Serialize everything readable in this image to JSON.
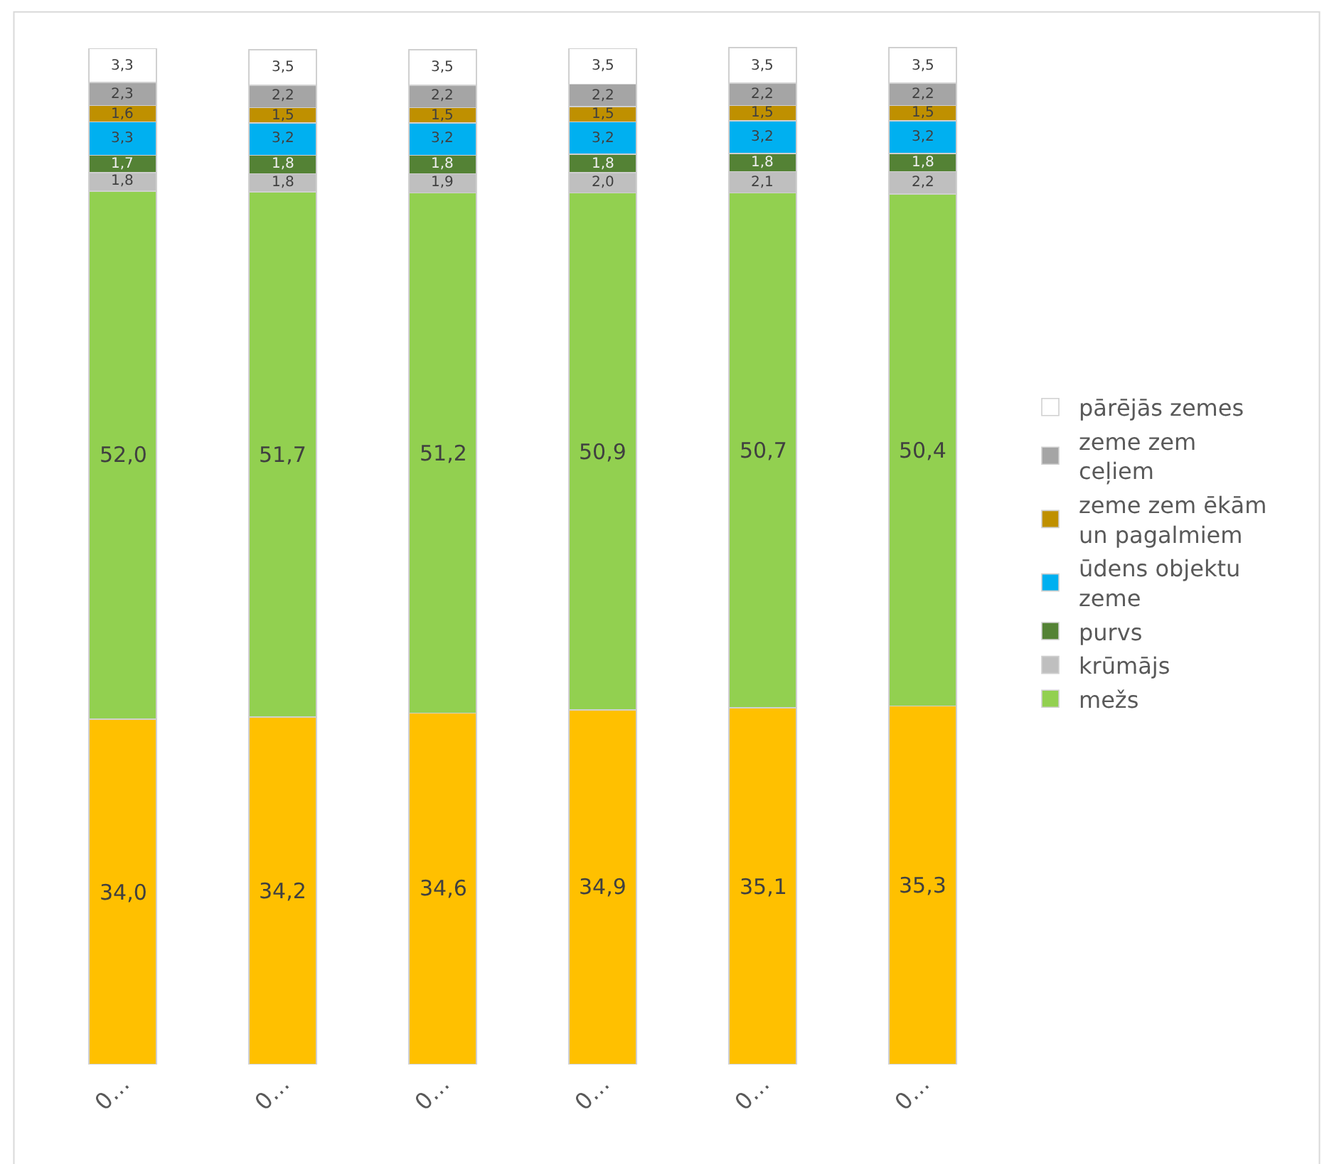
{
  "chart_data": {
    "type": "bar",
    "stacked": true,
    "tick_labels": "x",
    "categories": [
      "0…",
      "0…",
      "0…",
      "0…",
      "0…",
      "0…"
    ],
    "series": [
      {
        "color": "#ffc000",
        "values": [
          34.0,
          34.2,
          34.6,
          34.9,
          35.1,
          35.3
        ],
        "value_labels": [
          "34,0",
          "34,2",
          "34,6",
          "34,9",
          "35,1",
          "35,3"
        ]
      },
      {
        "name": "mežs",
        "color": "#92d050",
        "values": [
          52.0,
          51.7,
          51.2,
          50.9,
          50.7,
          50.4
        ],
        "value_labels": [
          "52,0",
          "51,7",
          "51,2",
          "50,9",
          "50,7",
          "50,4"
        ]
      },
      {
        "name": "krūmājs",
        "color": "#bfbfbf",
        "values": [
          1.8,
          1.8,
          1.9,
          2.0,
          2.1,
          2.2
        ],
        "value_labels": [
          "1,8",
          "1,8",
          "1,9",
          "2,0",
          "2,1",
          "2,2"
        ]
      },
      {
        "name": "purvs",
        "color": "#548235",
        "values": [
          1.7,
          1.8,
          1.8,
          1.8,
          1.8,
          1.8
        ],
        "value_labels": [
          "1,7",
          "1,8",
          "1,8",
          "1,8",
          "1,8",
          "1,8"
        ]
      },
      {
        "name": "ūdens objektu zeme",
        "color": "#00b0f0",
        "values": [
          3.3,
          3.2,
          3.2,
          3.2,
          3.2,
          3.2
        ],
        "value_labels": [
          "3,3",
          "3,2",
          "3,2",
          "3,2",
          "3,2",
          "3,2"
        ]
      },
      {
        "name": "zeme zem ēkām un pagalmiem",
        "color": "#bf9000",
        "values": [
          1.6,
          1.5,
          1.5,
          1.5,
          1.5,
          1.5
        ],
        "value_labels": [
          "1,6",
          "1,5",
          "1,5",
          "1,5",
          "1,5",
          "1,5"
        ]
      },
      {
        "name": "zeme zem ceļiem",
        "color": "#a5a5a5",
        "values": [
          2.3,
          2.2,
          2.2,
          2.2,
          2.2,
          2.2
        ],
        "value_labels": [
          "2,3",
          "2,2",
          "2,2",
          "2,2",
          "2,2",
          "2,2"
        ]
      },
      {
        "name": "pārējās zemes",
        "color": "#ffffff",
        "values": [
          3.3,
          3.5,
          3.5,
          3.5,
          3.5,
          3.5
        ],
        "value_labels": [
          "3,3",
          "3,5",
          "3,5",
          "3,5",
          "3,5",
          "3,5"
        ]
      }
    ],
    "legend": "right"
  }
}
